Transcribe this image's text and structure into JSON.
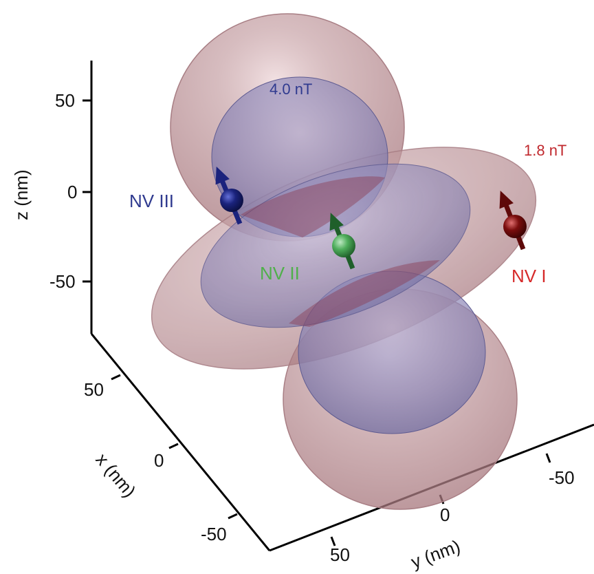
{
  "axes": {
    "z": {
      "label": "z (nm)",
      "ticks": [
        "50",
        "0",
        "-50"
      ]
    },
    "x": {
      "label": "x (nm)",
      "ticks": [
        "50",
        "0",
        "-50"
      ]
    },
    "y": {
      "label": "y (nm)",
      "ticks": [
        "-50",
        "0",
        "50"
      ]
    }
  },
  "isosurfaces": [
    {
      "label": "4.0 nT",
      "color": "#2f3a8f"
    },
    {
      "label": "1.8 nT",
      "color": "#c0282d"
    }
  ],
  "nv_centers": [
    {
      "label": "NV I",
      "color": "#d62a2a",
      "sphere": "#7a0c0c"
    },
    {
      "label": "NV II",
      "color": "#4fb04a",
      "sphere": "#3c9a48"
    },
    {
      "label": "NV III",
      "color": "#2f3a8f",
      "sphere": "#141a6e"
    }
  ]
}
